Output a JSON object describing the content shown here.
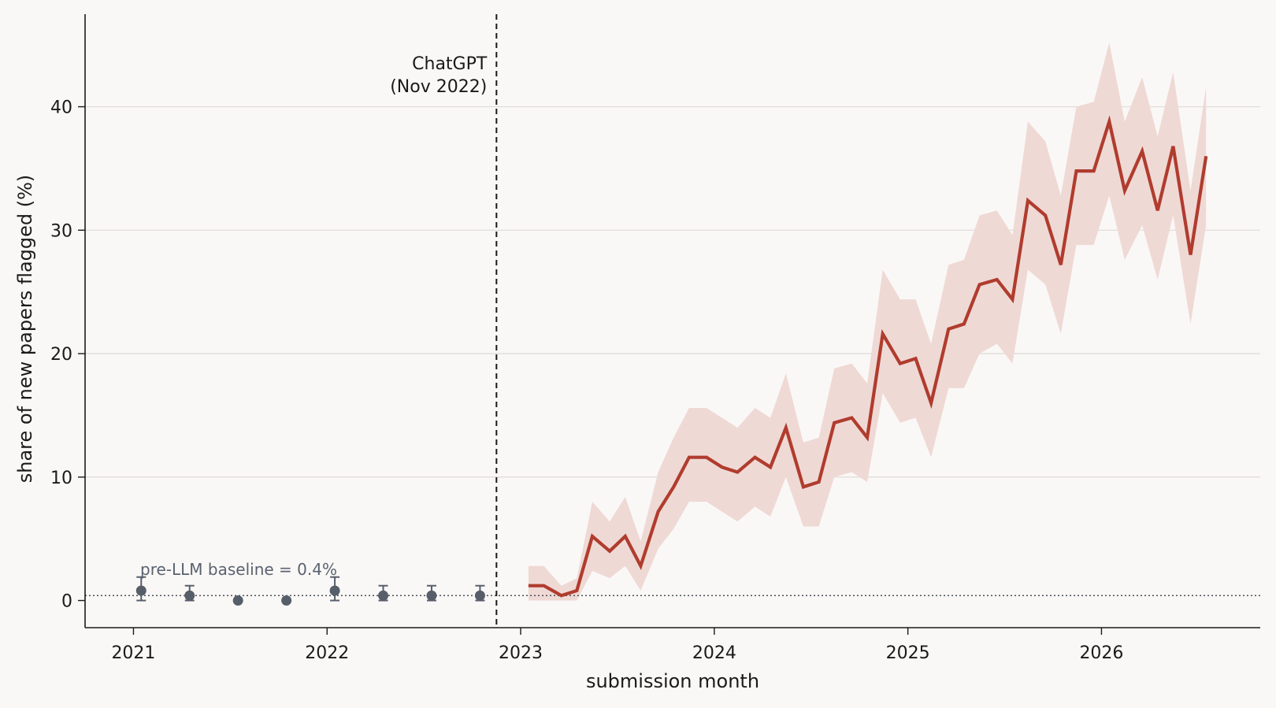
{
  "chart_data": {
    "type": "line",
    "title": "",
    "xlabel": "submission month",
    "ylabel": "share of new papers flagged (%)",
    "xlim": [
      2020.75,
      2026.82
    ],
    "ylim": [
      -2.2,
      47.5
    ],
    "x_ticks": [
      2021,
      2022,
      2023,
      2024,
      2025,
      2026
    ],
    "x_tick_labels": [
      "2021",
      "2022",
      "2023",
      "2024",
      "2025",
      "2026"
    ],
    "y_ticks": [
      0,
      10,
      20,
      30,
      40
    ],
    "y_tick_labels": [
      "0",
      "10",
      "20",
      "30",
      "40"
    ],
    "grid": "horizontal",
    "colors": {
      "series": "#b03c2e",
      "band": "#efd9d5",
      "pre": "#565e6a",
      "vline": "#1a1a1a"
    },
    "annotations": {
      "chatgpt_line1": "ChatGPT",
      "chatgpt_line2": "(Nov 2022)",
      "chatgpt_x": 2022.875,
      "baseline_label": "pre-LLM baseline = 0.4%",
      "baseline_value": 0.4
    },
    "pre_llm_points": [
      {
        "x": 2021.04,
        "y": 0.8,
        "err_low": 0.8,
        "err_high": 1.1
      },
      {
        "x": 2021.29,
        "y": 0.4,
        "err_low": 0.4,
        "err_high": 0.8
      },
      {
        "x": 2021.54,
        "y": 0.0,
        "err_low": 0.0,
        "err_high": 0.0
      },
      {
        "x": 2021.79,
        "y": 0.0,
        "err_low": 0.0,
        "err_high": 0.0
      },
      {
        "x": 2022.04,
        "y": 0.8,
        "err_low": 0.8,
        "err_high": 1.1
      },
      {
        "x": 2022.29,
        "y": 0.4,
        "err_low": 0.4,
        "err_high": 0.8
      },
      {
        "x": 2022.54,
        "y": 0.4,
        "err_low": 0.4,
        "err_high": 0.8
      },
      {
        "x": 2022.79,
        "y": 0.4,
        "err_low": 0.4,
        "err_high": 0.8
      }
    ],
    "series": [
      {
        "x": [
          2023.04,
          2023.12,
          2023.21,
          2023.29,
          2023.37,
          2023.46,
          2023.54,
          2023.62,
          2023.71,
          2023.79,
          2023.87,
          2023.96,
          2024.04,
          2024.12,
          2024.21,
          2024.29,
          2024.37,
          2024.46,
          2024.54,
          2024.62,
          2024.71,
          2024.79,
          2024.87,
          2024.96,
          2025.04,
          2025.12,
          2025.21,
          2025.29,
          2025.37,
          2025.46,
          2025.54,
          2025.62,
          2025.71,
          2025.79,
          2025.87,
          2025.96,
          2026.04,
          2026.12,
          2026.21,
          2026.29,
          2026.37,
          2026.46,
          2026.54
        ],
        "values": [
          1.2,
          1.2,
          0.4,
          0.8,
          5.2,
          4.0,
          5.2,
          2.8,
          7.2,
          9.2,
          11.6,
          11.6,
          10.8,
          10.4,
          11.6,
          10.8,
          14.0,
          9.2,
          9.6,
          14.4,
          14.8,
          13.2,
          21.6,
          19.2,
          19.6,
          16.0,
          22.0,
          22.4,
          25.6,
          26.0,
          24.4,
          32.4,
          31.2,
          27.2,
          34.8,
          34.8,
          38.8,
          33.2,
          36.4,
          31.6,
          36.8,
          28.0,
          36.0
        ],
        "lower": [
          0.0,
          0.0,
          0.0,
          0.0,
          2.4,
          1.8,
          2.8,
          0.8,
          4.2,
          5.8,
          8.0,
          8.0,
          7.2,
          6.4,
          7.6,
          6.8,
          10.0,
          6.0,
          6.0,
          10.0,
          10.4,
          9.6,
          16.8,
          14.4,
          14.8,
          11.6,
          17.2,
          17.2,
          20.0,
          20.8,
          19.2,
          26.8,
          25.6,
          21.6,
          28.8,
          28.8,
          32.8,
          27.6,
          30.4,
          26.0,
          31.2,
          22.4,
          30.4
        ],
        "upper": [
          2.8,
          2.8,
          1.2,
          1.8,
          8.0,
          6.4,
          8.4,
          4.8,
          10.4,
          13.2,
          15.6,
          15.6,
          14.8,
          14.0,
          15.6,
          14.8,
          18.4,
          12.8,
          13.2,
          18.8,
          19.2,
          17.6,
          26.8,
          24.4,
          24.4,
          20.8,
          27.2,
          27.6,
          31.2,
          31.6,
          29.6,
          38.8,
          37.2,
          32.8,
          40.0,
          40.4,
          45.2,
          38.8,
          42.4,
          37.6,
          42.8,
          33.2,
          41.6
        ]
      }
    ]
  }
}
